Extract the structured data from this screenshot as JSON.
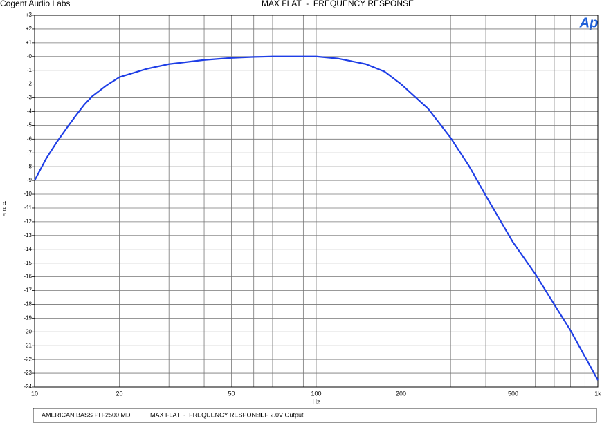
{
  "chart_data": {
    "type": "line",
    "header_left": "Cogent Audio Labs",
    "title": "MAX FLAT  -  FREQUENCY RESPONSE",
    "logo": "Ap",
    "ylabel": "dBr",
    "xlabel": "Hz",
    "xscale": "log",
    "grid": true,
    "xlim": [
      10,
      1000
    ],
    "ylim": [
      -24,
      3
    ],
    "xticks": [
      10,
      20,
      50,
      100,
      200,
      500,
      {
        "value": 1000,
        "label": "1k"
      }
    ],
    "xminor_ticks": [
      30,
      40,
      60,
      70,
      80,
      90,
      300,
      400,
      600,
      700,
      800,
      900
    ],
    "yticks": [
      {
        "value": 3,
        "label": "+3"
      },
      {
        "value": 2,
        "label": "+2"
      },
      {
        "value": 1,
        "label": "+1"
      },
      {
        "value": 0,
        "label": "-0"
      },
      -1,
      -2,
      -3,
      -4,
      -5,
      -6,
      -7,
      -8,
      -9,
      -10,
      -11,
      -12,
      -13,
      -14,
      -15,
      -16,
      -17,
      -18,
      -19,
      -20,
      -21,
      -22,
      -23,
      -24
    ],
    "x": [
      10,
      11,
      12,
      13,
      14,
      15,
      16,
      18,
      20,
      25,
      30,
      40,
      50,
      60,
      70,
      80,
      100,
      120,
      150,
      175,
      200,
      250,
      300,
      350,
      400,
      500,
      600,
      700,
      800,
      1000
    ],
    "series": [
      {
        "name": "MAX FLAT",
        "color": "#1e3ee6",
        "values": [
          -9,
          -7.4,
          -6.2,
          -5.2,
          -4.3,
          -3.5,
          -2.9,
          -2.1,
          -1.5,
          -0.9,
          -0.55,
          -0.25,
          -0.1,
          -0.03,
          0,
          0,
          0,
          -0.15,
          -0.55,
          -1.1,
          -2.0,
          -3.8,
          -5.9,
          -8.0,
          -10.1,
          -13.5,
          -15.8,
          -18.0,
          -19.9,
          -23.5
        ]
      }
    ],
    "footer": [
      "AMERICAN BASS PH-2500 MD",
      "MAX FLAT  -  FREQUENCY RESPONSE",
      "REF 2.0V Output"
    ]
  }
}
